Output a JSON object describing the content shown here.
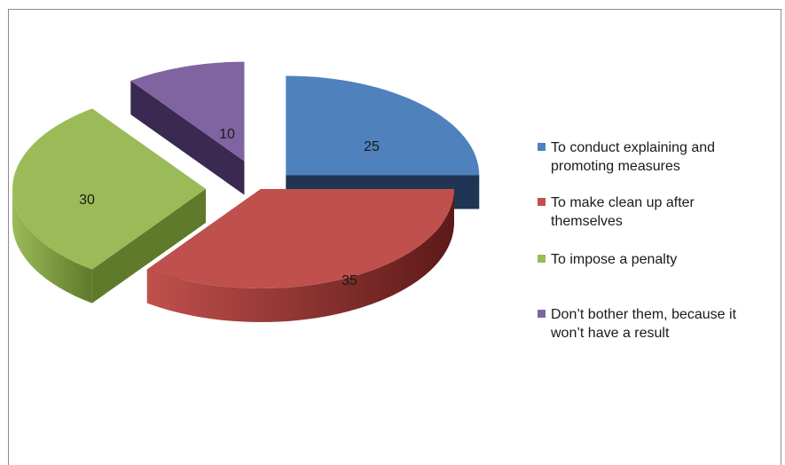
{
  "chart_data": {
    "type": "pie",
    "style": "3d-exploded",
    "title": "",
    "slices": [
      {
        "label": "To conduct explaining and promoting measures",
        "value": 25,
        "color": "#4f81bd",
        "side_color": "#1f3553",
        "dark_color": "#2b4a72"
      },
      {
        "label": "To make clean up after themselves",
        "value": 35,
        "color": "#c0504d",
        "side_color": "#5c1a18",
        "dark_color": "#8a2e2c"
      },
      {
        "label": "To impose a penalty",
        "value": 30,
        "color": "#9bbb59",
        "side_color": "#5e7a2a",
        "dark_color": "#6d8a36"
      },
      {
        "label": "Don’t bother them, because it won’t have a result",
        "value": 10,
        "color": "#8064a2",
        "side_color": "#3a2a52",
        "dark_color": "#4e3b6b"
      }
    ],
    "legend_position": "right"
  }
}
